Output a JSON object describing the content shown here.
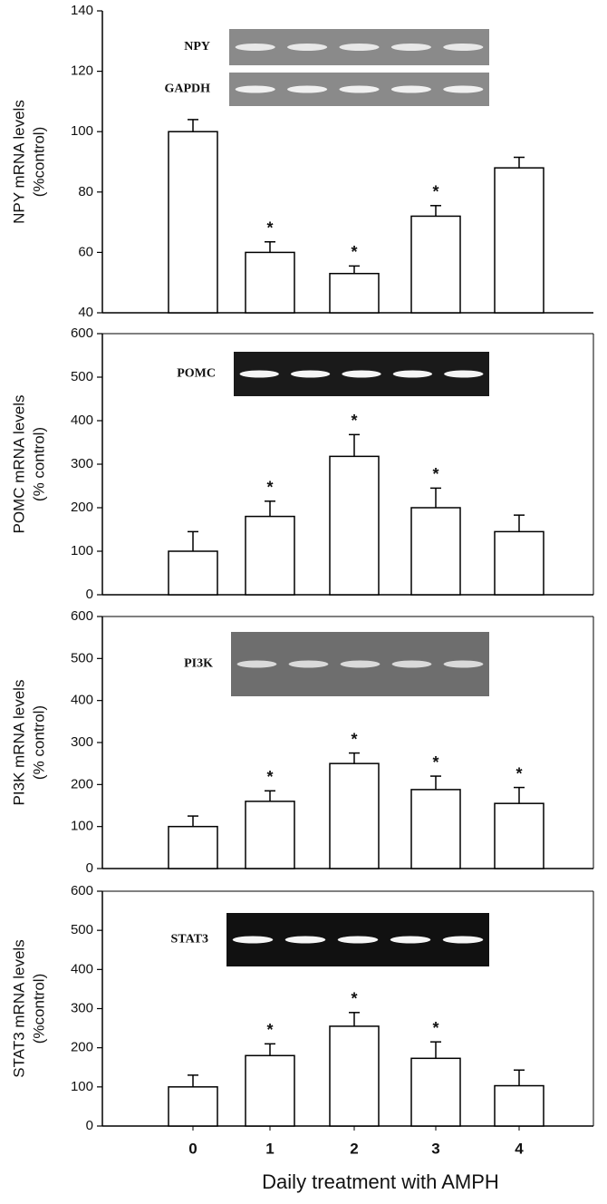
{
  "chart_data": [
    {
      "type": "bar",
      "ylabel": [
        "NPY mRNA levels",
        "(%control)"
      ],
      "gel_labels": [
        "NPY",
        "GAPDH"
      ],
      "categories": [
        null,
        null,
        null,
        null,
        null
      ],
      "values": [
        100,
        60,
        53,
        72,
        88
      ],
      "errors": [
        4,
        3.5,
        2.5,
        3.5,
        3.5
      ],
      "significance": [
        null,
        "*",
        "*",
        "*",
        null
      ],
      "ylim": [
        40,
        140
      ],
      "yticks": [
        40,
        60,
        80,
        100,
        120,
        140
      ],
      "color": "#ffffff"
    },
    {
      "type": "bar",
      "ylabel": [
        "POMC mRNA levels",
        "(% control)"
      ],
      "gel_labels": [
        "POMC"
      ],
      "categories": [
        null,
        null,
        null,
        null,
        null
      ],
      "values": [
        100,
        180,
        318,
        200,
        145
      ],
      "errors": [
        45,
        35,
        50,
        45,
        38
      ],
      "significance": [
        null,
        "*",
        "*",
        "*",
        null
      ],
      "ylim": [
        0,
        600
      ],
      "yticks": [
        0,
        100,
        200,
        300,
        400,
        500,
        600
      ],
      "color": "#ffffff"
    },
    {
      "type": "bar",
      "ylabel": [
        "PI3K mRNA levels",
        "(% control)"
      ],
      "gel_labels": [
        "PI3K"
      ],
      "categories": [
        null,
        null,
        null,
        null,
        null
      ],
      "values": [
        100,
        160,
        250,
        188,
        155
      ],
      "errors": [
        25,
        25,
        25,
        32,
        38
      ],
      "significance": [
        null,
        "*",
        "*",
        "*",
        "*"
      ],
      "ylim": [
        0,
        600
      ],
      "yticks": [
        0,
        100,
        200,
        300,
        400,
        500,
        600
      ],
      "color": "#ffffff"
    },
    {
      "type": "bar",
      "ylabel": [
        "STAT3 mRNA levels",
        "(%control)"
      ],
      "gel_labels": [
        "STAT3"
      ],
      "categories": [
        "0",
        "1",
        "2",
        "3",
        "4"
      ],
      "xlabel": "Daily treatment with AMPH",
      "values": [
        100,
        180,
        255,
        173,
        103
      ],
      "errors": [
        30,
        30,
        35,
        42,
        40
      ],
      "significance": [
        null,
        "*",
        "*",
        "*",
        null
      ],
      "ylim": [
        0,
        600
      ],
      "yticks": [
        0,
        100,
        200,
        300,
        400,
        500,
        600
      ],
      "color": "#ffffff"
    }
  ]
}
